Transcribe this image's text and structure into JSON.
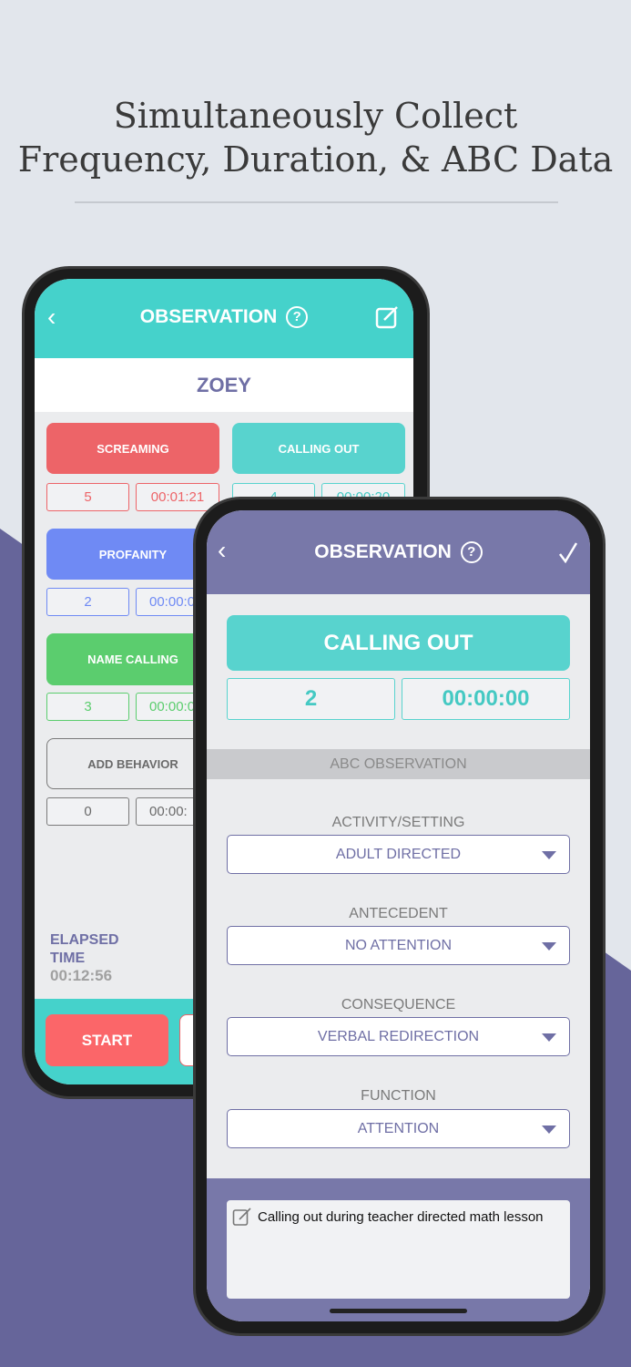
{
  "headline": {
    "line1": "Simultaneously Collect",
    "line2": "Frequency, Duration, & ABC Data"
  },
  "colors": {
    "teal": "#45d2cb",
    "purple": "#7878a9",
    "red": "#ed6468",
    "blue": "#6f8af4",
    "green": "#5bcd6e",
    "bg_purple": "#66659a"
  },
  "back_phone": {
    "header": {
      "title": "OBSERVATION",
      "help_icon": "?"
    },
    "student": "ZOEY",
    "behaviors": [
      {
        "label": "SCREAMING",
        "count": "5",
        "duration": "00:01:21",
        "color": "#ed6468"
      },
      {
        "label": "CALLING OUT",
        "count": "4",
        "duration": "00:00:20",
        "color": "#58d3ce"
      },
      {
        "label": "PROFANITY",
        "count": "2",
        "duration": "00:00:0",
        "color": "#6f8af4"
      },
      {
        "label": "NAME CALLING",
        "count": "3",
        "duration": "00:00:0",
        "color": "#5bcd6e"
      },
      {
        "label": "ADD BEHAVIOR",
        "count": "0",
        "duration": "00:00:",
        "color": "#7a7a7a"
      }
    ],
    "elapsed_label": "ELAPSED TIME",
    "elapsed_value": "00:12:56",
    "start_label": "START"
  },
  "front_phone": {
    "header": {
      "title": "OBSERVATION",
      "help_icon": "?"
    },
    "behavior": "CALLING OUT",
    "count": "2",
    "duration": "00:00:00",
    "section": "ABC OBSERVATION",
    "fields": [
      {
        "label": "ACTIVITY/SETTING",
        "value": "ADULT DIRECTED"
      },
      {
        "label": "ANTECEDENT",
        "value": "NO ATTENTION"
      },
      {
        "label": "CONSEQUENCE",
        "value": "VERBAL REDIRECTION"
      },
      {
        "label": "FUNCTION",
        "value": "ATTENTION"
      }
    ],
    "note": "Calling out during teacher directed math lesson"
  }
}
